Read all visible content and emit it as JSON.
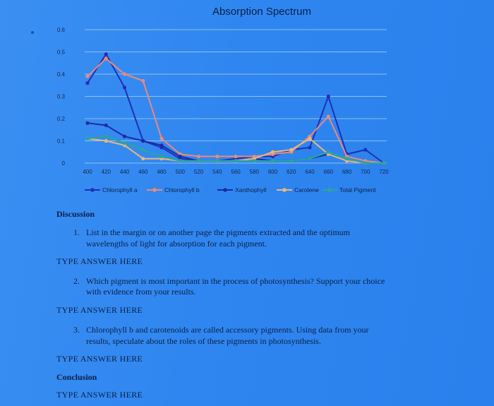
{
  "chart_data": {
    "type": "line",
    "title": "Absorption Spectrum",
    "x": [
      400,
      420,
      440,
      460,
      480,
      500,
      520,
      540,
      560,
      580,
      600,
      620,
      640,
      660,
      680,
      700,
      720
    ],
    "xticks": [
      "400",
      "420",
      "440",
      "460",
      "480",
      "500",
      "520",
      "540",
      "560",
      "580",
      "600",
      "620",
      "640",
      "660",
      "680",
      "700",
      "720"
    ],
    "yticks": [
      "0",
      "0.1",
      "0.2",
      "0.3",
      "0.4",
      "0.5",
      "0.6"
    ],
    "ylim": [
      0,
      0.6
    ],
    "grid": true,
    "legend_position": "bottom",
    "series": [
      {
        "name": "Chlorophyll a",
        "color": "#1e2fb8",
        "values": [
          0.36,
          0.49,
          0.34,
          0.1,
          0.07,
          0.02,
          0.01,
          0.01,
          0.02,
          0.03,
          0.03,
          0.06,
          0.07,
          0.3,
          0.04,
          0.06,
          0.0
        ]
      },
      {
        "name": "Chlorophyll b",
        "color": "#e98a7a",
        "values": [
          0.39,
          0.47,
          0.4,
          0.37,
          0.11,
          0.04,
          0.03,
          0.03,
          0.03,
          0.03,
          0.04,
          0.05,
          0.12,
          0.21,
          0.03,
          0.01,
          0.0
        ]
      },
      {
        "name": "Xanthophyll",
        "color": "#1c2aa6",
        "values": [
          0.18,
          0.17,
          0.12,
          0.1,
          0.08,
          0.03,
          0.01,
          0.01,
          0.01,
          0.02,
          0.01,
          0.01,
          0.02,
          0.04,
          0.01,
          0.0,
          0.0
        ]
      },
      {
        "name": "Carotene",
        "color": "#e8b87a",
        "values": [
          0.11,
          0.1,
          0.08,
          0.02,
          0.02,
          0.01,
          0.01,
          0.01,
          0.01,
          0.02,
          0.05,
          0.06,
          0.11,
          0.04,
          0.01,
          0.0,
          0.0
        ]
      },
      {
        "name": "Total Pigment",
        "color": "#2aa69a",
        "values": [
          0.11,
          0.12,
          0.09,
          0.06,
          0.03,
          0.01,
          0.01,
          0.01,
          0.01,
          0.01,
          0.01,
          0.01,
          0.02,
          0.05,
          0.02,
          0.0,
          0.0
        ]
      }
    ]
  },
  "doc": {
    "discussion_heading": "Discussion",
    "questions": [
      {
        "num": "1.",
        "line1": "List in the margin or on another page the pigments extracted and the optimum",
        "line2": "wavelengths of light for absorption for each pigment."
      },
      {
        "num": "2.",
        "line1": "Which pigment is most important in the process of photosynthesis? Support your choice",
        "line2": "with evidence from your results."
      },
      {
        "num": "3.",
        "line1": "Chlorophyll b and carotenoids are called accessory pigments. Using data from your",
        "line2": "results, speculate about the roles of these pigments in photosynthesis."
      }
    ],
    "answer_placeholder": "TYPE ANSWER HERE",
    "conclusion_heading": "Conclusion"
  }
}
